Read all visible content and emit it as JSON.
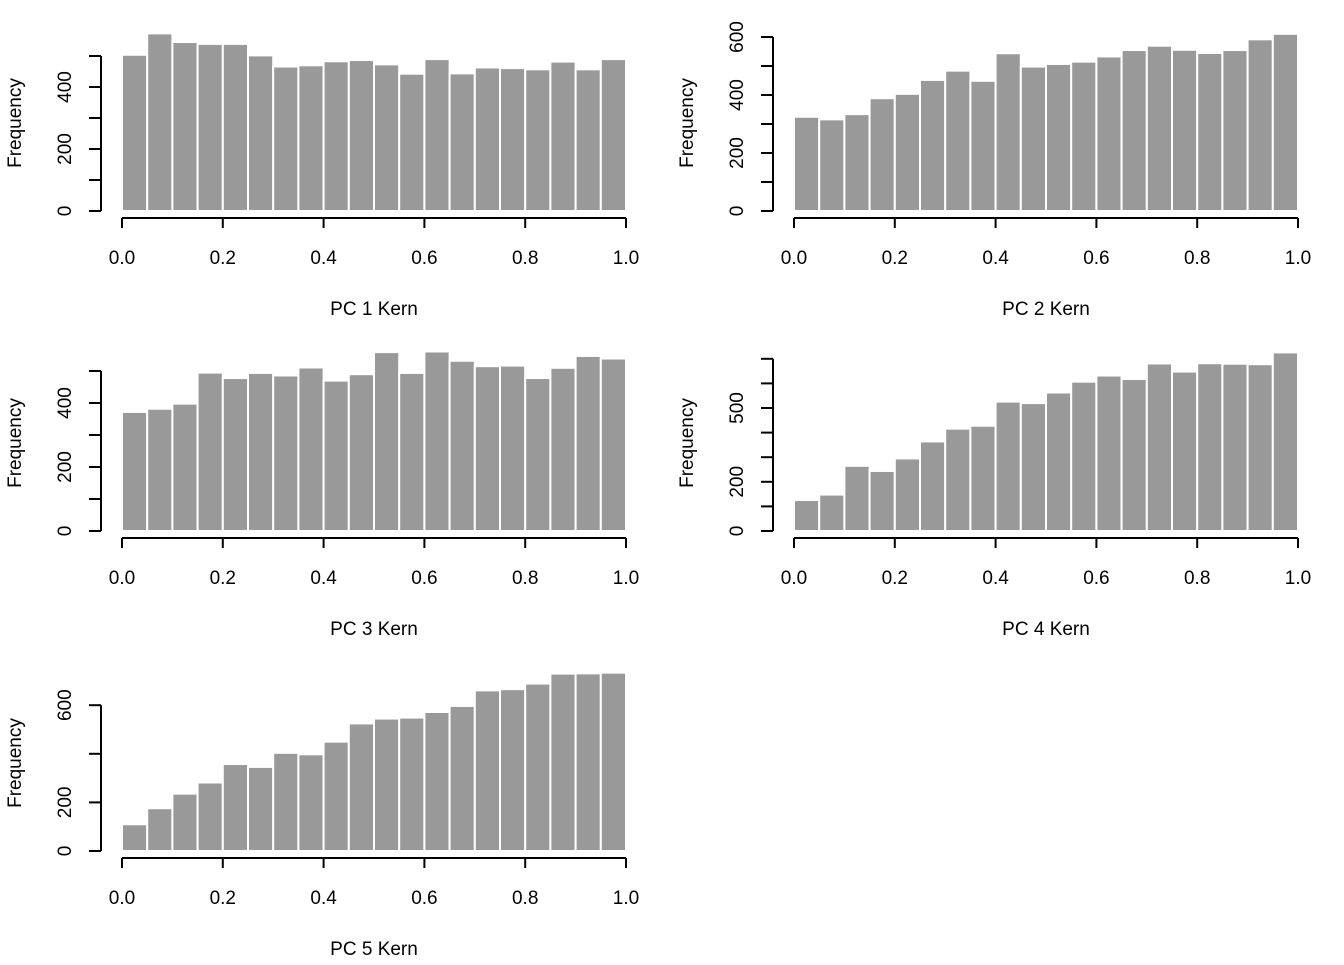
{
  "chart_data": [
    {
      "type": "bar",
      "title": "",
      "xlabel": "PC 1 Kern",
      "ylabel": "Frequency",
      "bin_edges": [
        0.0,
        0.05,
        0.1,
        0.15,
        0.2,
        0.25,
        0.3,
        0.35,
        0.4,
        0.45,
        0.5,
        0.55,
        0.6,
        0.65,
        0.7,
        0.75,
        0.8,
        0.85,
        0.9,
        0.95,
        1.0
      ],
      "values": [
        504,
        573,
        545,
        539,
        539,
        502,
        466,
        470,
        483,
        487,
        473,
        443,
        490,
        444,
        463,
        461,
        457,
        482,
        457,
        490
      ],
      "xlim": [
        0,
        1
      ],
      "xticks": [
        "0.0",
        "0.2",
        "0.4",
        "0.6",
        "0.8",
        "1.0"
      ],
      "ylim": [
        0,
        500
      ],
      "yticks": [
        "0",
        "200",
        "400"
      ],
      "yminor": [
        100,
        300,
        500
      ]
    },
    {
      "type": "bar",
      "title": "",
      "xlabel": "PC 2 Kern",
      "ylabel": "Frequency",
      "bin_edges": [
        0.0,
        0.05,
        0.1,
        0.15,
        0.2,
        0.25,
        0.3,
        0.35,
        0.4,
        0.45,
        0.5,
        0.55,
        0.6,
        0.65,
        0.7,
        0.75,
        0.8,
        0.85,
        0.9,
        0.95,
        1.0
      ],
      "values": [
        325,
        316,
        334,
        389,
        404,
        452,
        484,
        449,
        544,
        498,
        507,
        515,
        533,
        555,
        570,
        556,
        545,
        555,
        592,
        611
      ],
      "xlim": [
        0,
        1
      ],
      "xticks": [
        "0.0",
        "0.2",
        "0.4",
        "0.6",
        "0.8",
        "1.0"
      ],
      "ylim": [
        0,
        600
      ],
      "yticks": [
        "0",
        "200",
        "400",
        "600"
      ],
      "yminor": [
        100,
        300,
        500
      ]
    },
    {
      "type": "bar",
      "title": "",
      "xlabel": "PC 3 Kern",
      "ylabel": "Frequency",
      "bin_edges": [
        0.0,
        0.05,
        0.1,
        0.15,
        0.2,
        0.25,
        0.3,
        0.35,
        0.4,
        0.45,
        0.5,
        0.55,
        0.6,
        0.65,
        0.7,
        0.75,
        0.8,
        0.85,
        0.9,
        0.95,
        1.0
      ],
      "values": [
        372,
        382,
        398,
        495,
        478,
        494,
        486,
        511,
        470,
        490,
        559,
        494,
        561,
        532,
        515,
        517,
        478,
        510,
        547,
        539
      ],
      "xlim": [
        0,
        1
      ],
      "xticks": [
        "0.0",
        "0.2",
        "0.4",
        "0.6",
        "0.8",
        "1.0"
      ],
      "ylim": [
        0,
        500
      ],
      "yticks": [
        "0",
        "200",
        "400"
      ],
      "yminor": [
        100,
        300,
        500
      ]
    },
    {
      "type": "bar",
      "title": "",
      "xlabel": "PC 4 Kern",
      "ylabel": "Frequency",
      "bin_edges": [
        0.0,
        0.05,
        0.1,
        0.15,
        0.2,
        0.25,
        0.3,
        0.35,
        0.4,
        0.45,
        0.5,
        0.55,
        0.6,
        0.65,
        0.7,
        0.75,
        0.8,
        0.85,
        0.9,
        0.95,
        1.0
      ],
      "values": [
        126,
        148,
        265,
        244,
        295,
        364,
        416,
        428,
        526,
        520,
        563,
        607,
        632,
        618,
        681,
        648,
        682,
        680,
        678,
        726
      ],
      "xlim": [
        0,
        1
      ],
      "xticks": [
        "0.0",
        "0.2",
        "0.4",
        "0.6",
        "0.8",
        "1.0"
      ],
      "ylim": [
        0,
        700
      ],
      "yticks": [
        "0",
        "200",
        "500"
      ],
      "yminor": [
        100,
        300,
        400,
        600,
        700
      ]
    },
    {
      "type": "bar",
      "title": "",
      "xlabel": "PC 5 Kern",
      "ylabel": "Frequency",
      "bin_edges": [
        0.0,
        0.05,
        0.1,
        0.15,
        0.2,
        0.25,
        0.3,
        0.35,
        0.4,
        0.45,
        0.5,
        0.55,
        0.6,
        0.65,
        0.7,
        0.75,
        0.8,
        0.85,
        0.9,
        0.95,
        1.0
      ],
      "values": [
        110,
        176,
        236,
        282,
        358,
        346,
        404,
        398,
        450,
        525,
        545,
        549,
        572,
        597,
        661,
        666,
        689,
        730,
        731,
        734
      ],
      "xlim": [
        0,
        1
      ],
      "xticks": [
        "0.0",
        "0.2",
        "0.4",
        "0.6",
        "0.8",
        "1.0"
      ],
      "ylim": [
        0,
        600
      ],
      "yticks": [
        "0",
        "200",
        "600"
      ],
      "yminor": [
        400
      ]
    }
  ]
}
